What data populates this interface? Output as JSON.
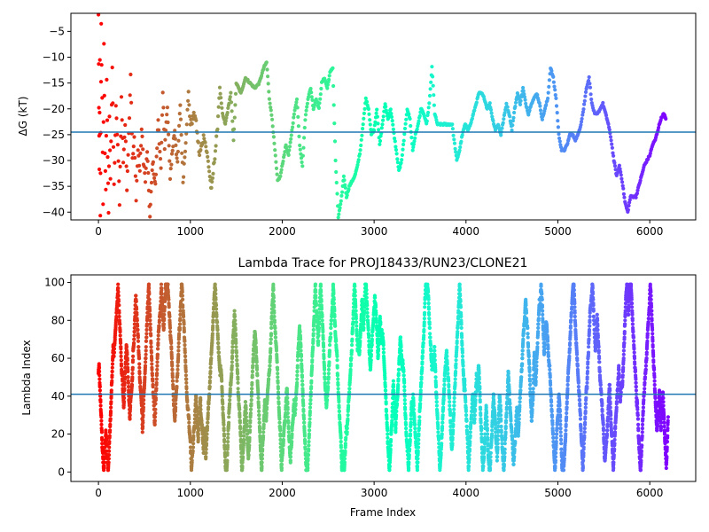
{
  "chart_data": [
    {
      "type": "scatter",
      "title": "",
      "xlabel": "",
      "ylabel": "ΔG (kT)",
      "xlim": [
        -300,
        6500
      ],
      "ylim": [
        -41.5,
        -1.5
      ],
      "xticks": [
        0,
        1000,
        2000,
        3000,
        4000,
        5000,
        6000
      ],
      "yticks": [
        -40,
        -35,
        -30,
        -25,
        -20,
        -15,
        -10,
        -5
      ],
      "hline": -24.5,
      "hline_color": "#1f77b4",
      "colormap": "rainbow (red at frame 0 → violet at last frame)",
      "trace": [
        [
          0,
          -2
        ],
        [
          5,
          -20
        ],
        [
          10,
          -32
        ],
        [
          15,
          -10
        ],
        [
          20,
          -41
        ],
        [
          25,
          -25
        ],
        [
          30,
          -4
        ],
        [
          40,
          -18
        ],
        [
          50,
          -38
        ],
        [
          60,
          -8
        ],
        [
          70,
          -28
        ],
        [
          80,
          -36
        ],
        [
          90,
          -14
        ],
        [
          100,
          -30
        ],
        [
          110,
          -40
        ],
        [
          120,
          -22
        ],
        [
          130,
          -33
        ],
        [
          150,
          -12
        ],
        [
          170,
          -35
        ],
        [
          190,
          -20
        ],
        [
          210,
          -27
        ],
        [
          230,
          -38
        ],
        [
          250,
          -18
        ],
        [
          270,
          -30
        ],
        [
          290,
          -23
        ],
        [
          310,
          -35
        ],
        [
          330,
          -25
        ],
        [
          350,
          -13
        ],
        [
          370,
          -30
        ],
        [
          390,
          -26
        ],
        [
          410,
          -37
        ],
        [
          430,
          -28
        ],
        [
          450,
          -32
        ],
        [
          470,
          -24
        ],
        [
          490,
          -30
        ],
        [
          510,
          -34
        ],
        [
          530,
          -28
        ],
        [
          560,
          -41
        ],
        [
          590,
          -30
        ],
        [
          620,
          -35
        ],
        [
          650,
          -22
        ],
        [
          680,
          -32
        ],
        [
          700,
          -17
        ],
        [
          720,
          -27
        ],
        [
          750,
          -20
        ],
        [
          780,
          -33
        ],
        [
          800,
          -29
        ],
        [
          830,
          -24
        ],
        [
          860,
          -31
        ],
        [
          890,
          -19
        ],
        [
          920,
          -34
        ],
        [
          950,
          -26
        ],
        [
          980,
          -17
        ],
        [
          1000,
          -23
        ],
        [
          1050,
          -21
        ],
        [
          1100,
          -29
        ],
        [
          1150,
          -25
        ],
        [
          1200,
          -31
        ],
        [
          1230,
          -36
        ],
        [
          1260,
          -30
        ],
        [
          1290,
          -25
        ],
        [
          1320,
          -16
        ],
        [
          1350,
          -21
        ],
        [
          1380,
          -23
        ],
        [
          1410,
          -20
        ],
        [
          1440,
          -17
        ],
        [
          1470,
          -26
        ],
        [
          1500,
          -15
        ],
        [
          1550,
          -17
        ],
        [
          1600,
          -14
        ],
        [
          1650,
          -15
        ],
        [
          1700,
          -16
        ],
        [
          1750,
          -15
        ],
        [
          1800,
          -12
        ],
        [
          1830,
          -11
        ],
        [
          1860,
          -18
        ],
        [
          1890,
          -22
        ],
        [
          1920,
          -28
        ],
        [
          1950,
          -34
        ],
        [
          1980,
          -33
        ],
        [
          2010,
          -30
        ],
        [
          2040,
          -27
        ],
        [
          2070,
          -29
        ],
        [
          2100,
          -25
        ],
        [
          2130,
          -21
        ],
        [
          2160,
          -18
        ],
        [
          2190,
          -27
        ],
        [
          2220,
          -31
        ],
        [
          2250,
          -22
        ],
        [
          2280,
          -18
        ],
        [
          2310,
          -16
        ],
        [
          2340,
          -20
        ],
        [
          2370,
          -18
        ],
        [
          2400,
          -20
        ],
        [
          2430,
          -15
        ],
        [
          2460,
          -14
        ],
        [
          2490,
          -16
        ],
        [
          2520,
          -13
        ],
        [
          2550,
          -12
        ],
        [
          2580,
          -30
        ],
        [
          2610,
          -41
        ],
        [
          2640,
          -38
        ],
        [
          2670,
          -33
        ],
        [
          2700,
          -37
        ],
        [
          2730,
          -35
        ],
        [
          2760,
          -34
        ],
        [
          2790,
          -33
        ],
        [
          2820,
          -31
        ],
        [
          2850,
          -28
        ],
        [
          2880,
          -23
        ],
        [
          2910,
          -18
        ],
        [
          2940,
          -20
        ],
        [
          2970,
          -25
        ],
        [
          3000,
          -24
        ],
        [
          3030,
          -20
        ],
        [
          3060,
          -27
        ],
        [
          3090,
          -23
        ],
        [
          3120,
          -19
        ],
        [
          3150,
          -22
        ],
        [
          3180,
          -20
        ],
        [
          3210,
          -24
        ],
        [
          3240,
          -28
        ],
        [
          3270,
          -32
        ],
        [
          3300,
          -30
        ],
        [
          3330,
          -25
        ],
        [
          3360,
          -20
        ],
        [
          3390,
          -22
        ],
        [
          3420,
          -28
        ],
        [
          3450,
          -25
        ],
        [
          3480,
          -23
        ],
        [
          3510,
          -20
        ],
        [
          3540,
          -21
        ],
        [
          3570,
          -23
        ],
        [
          3600,
          -19
        ],
        [
          3630,
          -12
        ],
        [
          3660,
          -21
        ],
        [
          3690,
          -23
        ],
        [
          3750,
          -23
        ],
        [
          3810,
          -23
        ],
        [
          3850,
          -23
        ],
        [
          3870,
          -26
        ],
        [
          3900,
          -30
        ],
        [
          3930,
          -28
        ],
        [
          3960,
          -25
        ],
        [
          3990,
          -23
        ],
        [
          4020,
          -24
        ],
        [
          4050,
          -23
        ],
        [
          4080,
          -21
        ],
        [
          4110,
          -19
        ],
        [
          4140,
          -17
        ],
        [
          4170,
          -17
        ],
        [
          4200,
          -18
        ],
        [
          4230,
          -20
        ],
        [
          4260,
          -19
        ],
        [
          4290,
          -22
        ],
        [
          4320,
          -24
        ],
        [
          4350,
          -23
        ],
        [
          4380,
          -25
        ],
        [
          4410,
          -22
        ],
        [
          4440,
          -19
        ],
        [
          4470,
          -21
        ],
        [
          4500,
          -24
        ],
        [
          4530,
          -20
        ],
        [
          4560,
          -17
        ],
        [
          4590,
          -19
        ],
        [
          4620,
          -16
        ],
        [
          4650,
          -19
        ],
        [
          4680,
          -21
        ],
        [
          4710,
          -19
        ],
        [
          4740,
          -18
        ],
        [
          4770,
          -17
        ],
        [
          4800,
          -19
        ],
        [
          4830,
          -22
        ],
        [
          4860,
          -20
        ],
        [
          4890,
          -18
        ],
        [
          4920,
          -12
        ],
        [
          4950,
          -14
        ],
        [
          4980,
          -18
        ],
        [
          5010,
          -25
        ],
        [
          5040,
          -28
        ],
        [
          5070,
          -28
        ],
        [
          5100,
          -27
        ],
        [
          5130,
          -25
        ],
        [
          5160,
          -25
        ],
        [
          5190,
          -26
        ],
        [
          5220,
          -25
        ],
        [
          5250,
          -23
        ],
        [
          5280,
          -20
        ],
        [
          5310,
          -16
        ],
        [
          5340,
          -14
        ],
        [
          5370,
          -19
        ],
        [
          5400,
          -21
        ],
        [
          5430,
          -21
        ],
        [
          5460,
          -20
        ],
        [
          5490,
          -19
        ],
        [
          5520,
          -21
        ],
        [
          5550,
          -23
        ],
        [
          5580,
          -26
        ],
        [
          5610,
          -30
        ],
        [
          5640,
          -33
        ],
        [
          5670,
          -31
        ],
        [
          5700,
          -34
        ],
        [
          5730,
          -38
        ],
        [
          5760,
          -40
        ],
        [
          5790,
          -37
        ],
        [
          5820,
          -37
        ],
        [
          5850,
          -37
        ],
        [
          5880,
          -35
        ],
        [
          5910,
          -33
        ],
        [
          5940,
          -31
        ],
        [
          5970,
          -30
        ],
        [
          6000,
          -29
        ],
        [
          6030,
          -27
        ],
        [
          6060,
          -26
        ],
        [
          6090,
          -24
        ],
        [
          6120,
          -22
        ],
        [
          6150,
          -21
        ],
        [
          6180,
          -22
        ]
      ]
    },
    {
      "type": "scatter",
      "title": "Lambda Trace for PROJ18433/RUN23/CLONE21",
      "xlabel": "Frame Index",
      "ylabel": "Lambda Index",
      "xlim": [
        -300,
        6500
      ],
      "ylim": [
        -5,
        104
      ],
      "xticks": [
        0,
        1000,
        2000,
        3000,
        4000,
        5000,
        6000
      ],
      "yticks": [
        0,
        20,
        40,
        60,
        80,
        100
      ],
      "hline": 41,
      "hline_color": "#1f77b4",
      "colormap": "rainbow (red at frame 0 → violet at last frame)",
      "x_range": [
        0,
        6200
      ],
      "lambda_range": [
        1,
        99
      ]
    }
  ]
}
